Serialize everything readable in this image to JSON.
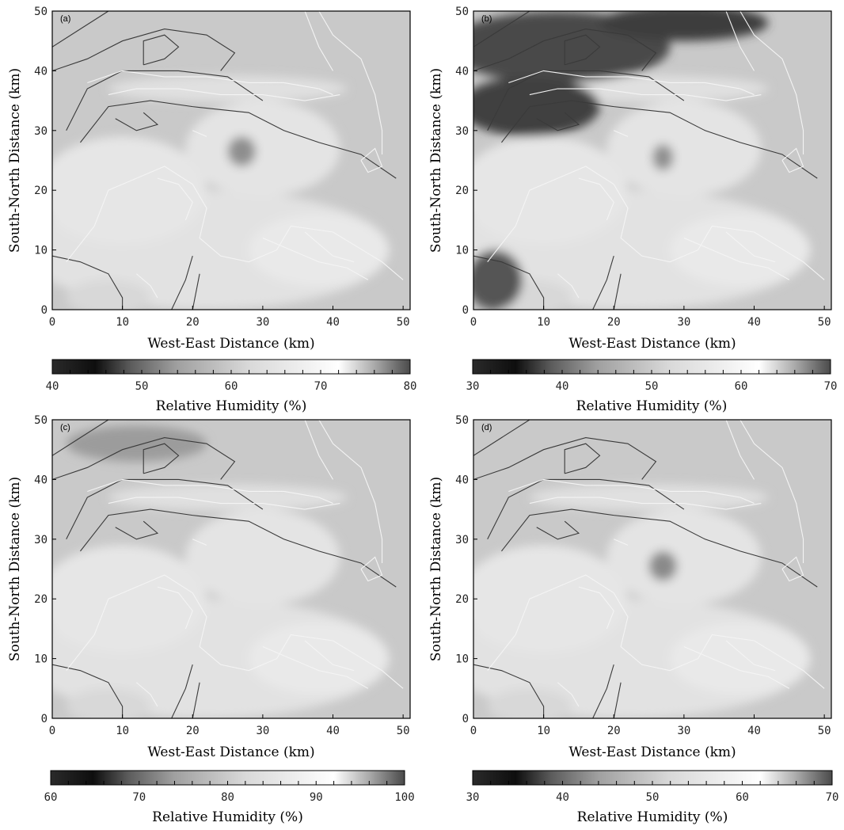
{
  "chart_data": [
    {
      "type": "heatmap",
      "panel_label": "(a)",
      "xlabel": "West-East Distance (km)",
      "ylabel": "South-North Distance (km)",
      "xlim": [
        0,
        51
      ],
      "ylim": [
        0,
        50
      ],
      "xticks": [
        0,
        10,
        20,
        30,
        40,
        50
      ],
      "yticks": [
        0,
        10,
        20,
        30,
        40,
        50
      ],
      "colorbar": {
        "label": "Relative Humidity (%)",
        "min": 40,
        "max": 80,
        "ticks": [
          40,
          50,
          60,
          70,
          80
        ]
      },
      "grid": false
    },
    {
      "type": "heatmap",
      "panel_label": "(b)",
      "xlabel": "West-East Distance (km)",
      "ylabel": "South-North Distance (km)",
      "xlim": [
        0,
        51
      ],
      "ylim": [
        0,
        50
      ],
      "xticks": [
        0,
        10,
        20,
        30,
        40,
        50
      ],
      "yticks": [
        0,
        10,
        20,
        30,
        40,
        50
      ],
      "colorbar": {
        "label": "Relative Humidity (%)",
        "min": 30,
        "max": 70,
        "ticks": [
          30,
          40,
          50,
          60,
          70
        ]
      },
      "grid": false
    },
    {
      "type": "heatmap",
      "panel_label": "(c)",
      "xlabel": "West-East Distance (km)",
      "ylabel": "South-North Distance (km)",
      "xlim": [
        0,
        51
      ],
      "ylim": [
        0,
        50
      ],
      "xticks": [
        0,
        10,
        20,
        30,
        40,
        50
      ],
      "yticks": [
        0,
        10,
        20,
        30,
        40,
        50
      ],
      "colorbar": {
        "label": "Relative Humidity (%)",
        "min": 60,
        "max": 100,
        "ticks": [
          60,
          70,
          80,
          90,
          100
        ]
      },
      "grid": false
    },
    {
      "type": "heatmap",
      "panel_label": "(d)",
      "xlabel": "West-East Distance (km)",
      "ylabel": "South-North Distance (km)",
      "xlim": [
        0,
        51
      ],
      "ylim": [
        0,
        50
      ],
      "xticks": [
        0,
        10,
        20,
        30,
        40,
        50
      ],
      "yticks": [
        0,
        10,
        20,
        30,
        40,
        50
      ],
      "colorbar": {
        "label": "Relative Humidity (%)",
        "min": 30,
        "max": 70,
        "ticks": [
          30,
          40,
          50,
          60,
          70
        ]
      },
      "grid": false
    }
  ]
}
